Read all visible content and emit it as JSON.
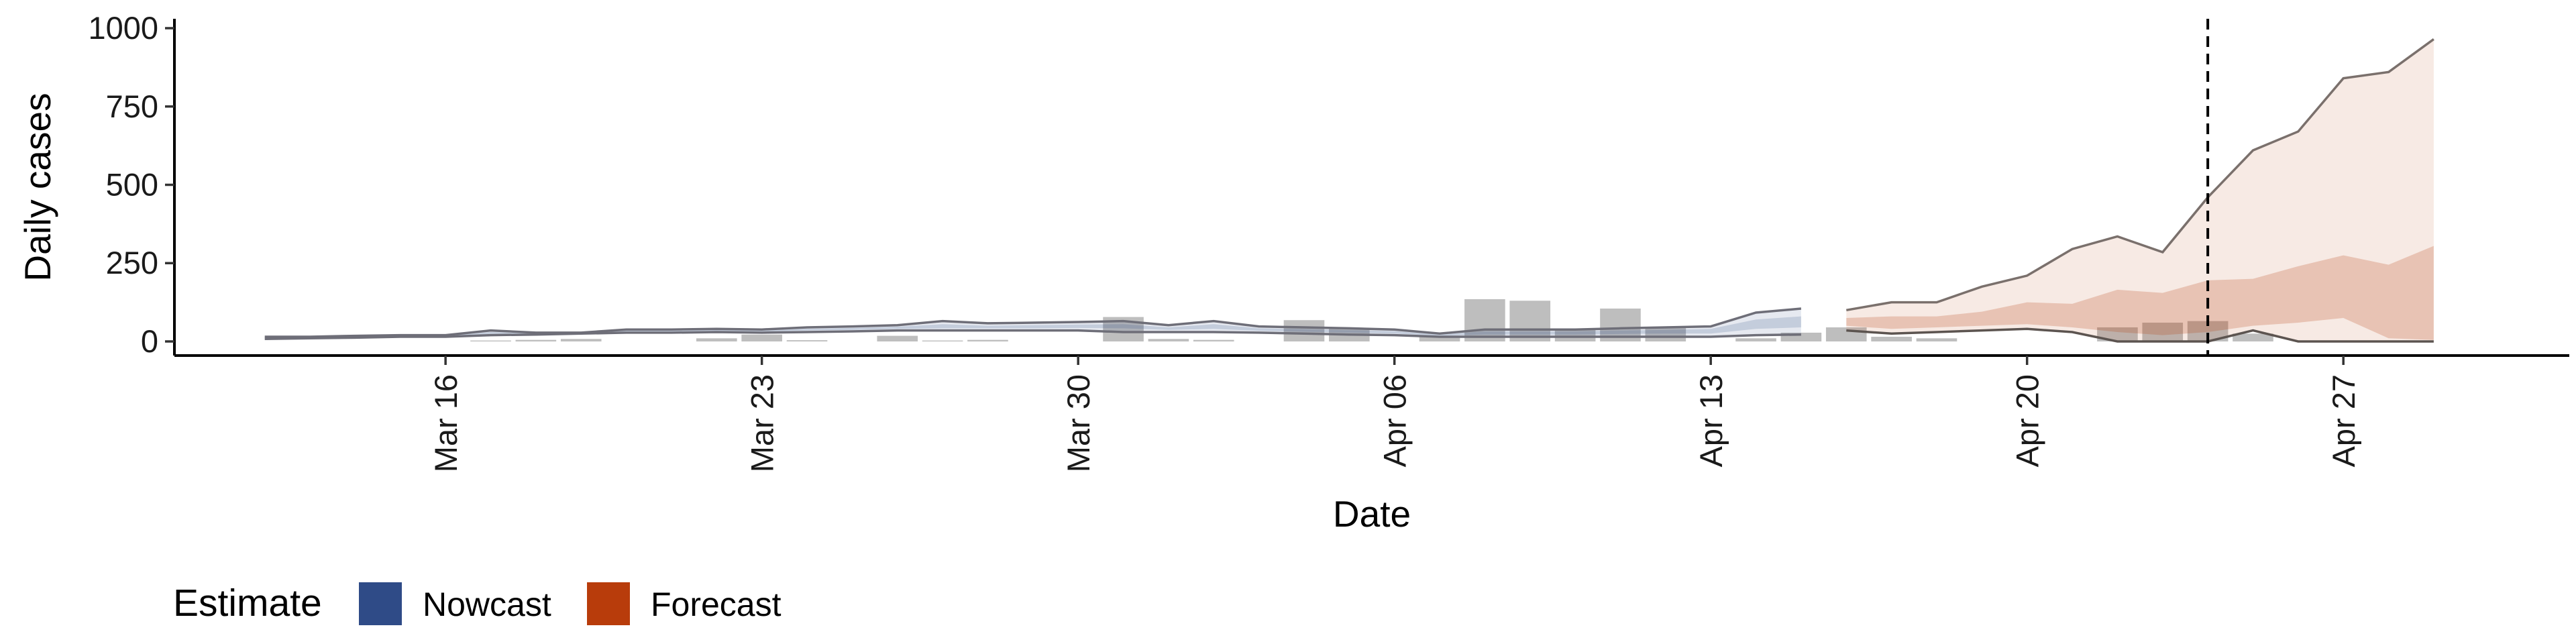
{
  "chart_data": {
    "type": "area",
    "xlabel": "Date",
    "ylabel": "Daily cases",
    "ylim": [
      -45,
      1030
    ],
    "yticks": [
      0,
      250,
      500,
      750,
      1000
    ],
    "xlim": [
      "2020-03-10",
      "2020-05-02"
    ],
    "xticks": [
      {
        "date": "2020-03-16",
        "label": "Mar 16"
      },
      {
        "date": "2020-03-23",
        "label": "Mar 23"
      },
      {
        "date": "2020-03-30",
        "label": "Mar 30"
      },
      {
        "date": "2020-04-06",
        "label": "Apr 06"
      },
      {
        "date": "2020-04-13",
        "label": "Apr 13"
      },
      {
        "date": "2020-04-20",
        "label": "Apr 20"
      },
      {
        "date": "2020-04-27",
        "label": "Apr 27"
      }
    ],
    "grid": false,
    "legend": {
      "title": "Estimate",
      "position": "bottom-left"
    },
    "vline_date": "2020-04-24",
    "reported_cases": {
      "color": "#b3b3b3",
      "bars": [
        {
          "date": "2020-03-17",
          "value": 3
        },
        {
          "date": "2020-03-18",
          "value": 5
        },
        {
          "date": "2020-03-19",
          "value": 8
        },
        {
          "date": "2020-03-22",
          "value": 10
        },
        {
          "date": "2020-03-23",
          "value": 22
        },
        {
          "date": "2020-03-24",
          "value": 4
        },
        {
          "date": "2020-03-26",
          "value": 18
        },
        {
          "date": "2020-03-27",
          "value": 3
        },
        {
          "date": "2020-03-28",
          "value": 5
        },
        {
          "date": "2020-03-31",
          "value": 78
        },
        {
          "date": "2020-04-01",
          "value": 8
        },
        {
          "date": "2020-04-02",
          "value": 5
        },
        {
          "date": "2020-04-04",
          "value": 68
        },
        {
          "date": "2020-04-05",
          "value": 40
        },
        {
          "date": "2020-04-07",
          "value": 15
        },
        {
          "date": "2020-04-08",
          "value": 135
        },
        {
          "date": "2020-04-09",
          "value": 130
        },
        {
          "date": "2020-04-10",
          "value": 40
        },
        {
          "date": "2020-04-11",
          "value": 105
        },
        {
          "date": "2020-04-12",
          "value": 45
        },
        {
          "date": "2020-04-14",
          "value": 10
        },
        {
          "date": "2020-04-15",
          "value": 28
        },
        {
          "date": "2020-04-16",
          "value": 45
        },
        {
          "date": "2020-04-17",
          "value": 15
        },
        {
          "date": "2020-04-18",
          "value": 10
        },
        {
          "date": "2020-04-22",
          "value": 45
        },
        {
          "date": "2020-04-23",
          "value": 60
        },
        {
          "date": "2020-04-24",
          "value": 65
        },
        {
          "date": "2020-04-25",
          "value": 25
        }
      ]
    },
    "series": [
      {
        "name": "Nowcast",
        "color": "#2f4b87",
        "outer": {
          "x": [
            "2020-03-12",
            "2020-03-13",
            "2020-03-14",
            "2020-03-15",
            "2020-03-16",
            "2020-03-17",
            "2020-03-18",
            "2020-03-19",
            "2020-03-20",
            "2020-03-21",
            "2020-03-22",
            "2020-03-23",
            "2020-03-24",
            "2020-03-25",
            "2020-03-26",
            "2020-03-27",
            "2020-03-28",
            "2020-03-29",
            "2020-03-30",
            "2020-03-31",
            "2020-04-01",
            "2020-04-02",
            "2020-04-03",
            "2020-04-04",
            "2020-04-05",
            "2020-04-06",
            "2020-04-07",
            "2020-04-08",
            "2020-04-09",
            "2020-04-10",
            "2020-04-11",
            "2020-04-12",
            "2020-04-13",
            "2020-04-14",
            "2020-04-15"
          ],
          "lower": [
            8,
            10,
            12,
            15,
            15,
            20,
            22,
            25,
            28,
            28,
            30,
            28,
            30,
            32,
            35,
            35,
            35,
            35,
            35,
            30,
            30,
            30,
            28,
            25,
            22,
            20,
            15,
            15,
            15,
            15,
            15,
            15,
            15,
            20,
            22
          ],
          "upper": [
            15,
            15,
            18,
            20,
            20,
            35,
            28,
            28,
            38,
            38,
            40,
            38,
            45,
            48,
            52,
            65,
            58,
            60,
            62,
            65,
            52,
            65,
            48,
            45,
            42,
            38,
            25,
            38,
            38,
            38,
            42,
            45,
            48,
            92,
            105
          ]
        },
        "inner": {
          "x": [
            "2020-03-12",
            "2020-03-13",
            "2020-03-14",
            "2020-03-15",
            "2020-03-16",
            "2020-03-17",
            "2020-03-18",
            "2020-03-19",
            "2020-03-20",
            "2020-03-21",
            "2020-03-22",
            "2020-03-23",
            "2020-03-24",
            "2020-03-25",
            "2020-03-26",
            "2020-03-27",
            "2020-03-28",
            "2020-03-29",
            "2020-03-30",
            "2020-03-31",
            "2020-04-01",
            "2020-04-02",
            "2020-04-03",
            "2020-04-04",
            "2020-04-05",
            "2020-04-06",
            "2020-04-07",
            "2020-04-08",
            "2020-04-09",
            "2020-04-10",
            "2020-04-11",
            "2020-04-12",
            "2020-04-13",
            "2020-04-14",
            "2020-04-15"
          ],
          "lower": [
            10,
            12,
            14,
            17,
            17,
            24,
            24,
            26,
            31,
            31,
            33,
            31,
            35,
            37,
            40,
            42,
            42,
            42,
            43,
            42,
            37,
            40,
            34,
            31,
            28,
            25,
            18,
            22,
            22,
            22,
            24,
            25,
            25,
            40,
            45
          ],
          "upper": [
            12,
            13,
            16,
            18,
            18,
            30,
            26,
            27,
            35,
            35,
            37,
            35,
            40,
            43,
            47,
            55,
            50,
            52,
            54,
            55,
            45,
            55,
            42,
            39,
            36,
            33,
            22,
            32,
            32,
            32,
            35,
            37,
            40,
            70,
            80
          ]
        }
      },
      {
        "name": "Forecast",
        "color": "#b83c0b",
        "outer": {
          "x": [
            "2020-04-16",
            "2020-04-17",
            "2020-04-18",
            "2020-04-19",
            "2020-04-20",
            "2020-04-21",
            "2020-04-22",
            "2020-04-23",
            "2020-04-24",
            "2020-04-25",
            "2020-04-26",
            "2020-04-27",
            "2020-04-28",
            "2020-04-29"
          ],
          "lower": [
            35,
            25,
            30,
            35,
            40,
            30,
            0,
            0,
            0,
            35,
            0,
            0,
            0,
            0
          ],
          "upper": [
            100,
            125,
            125,
            175,
            210,
            295,
            335,
            285,
            460,
            610,
            670,
            840,
            860,
            965
          ]
        },
        "inner": {
          "x": [
            "2020-04-16",
            "2020-04-17",
            "2020-04-18",
            "2020-04-19",
            "2020-04-20",
            "2020-04-21",
            "2020-04-22",
            "2020-04-23",
            "2020-04-24",
            "2020-04-25",
            "2020-04-26",
            "2020-04-27",
            "2020-04-28",
            "2020-04-29"
          ],
          "lower": [
            50,
            40,
            45,
            50,
            55,
            45,
            30,
            20,
            30,
            50,
            60,
            75,
            10,
            5
          ],
          "upper": [
            75,
            80,
            80,
            95,
            125,
            120,
            165,
            155,
            195,
            200,
            240,
            275,
            245,
            305
          ]
        }
      }
    ]
  }
}
